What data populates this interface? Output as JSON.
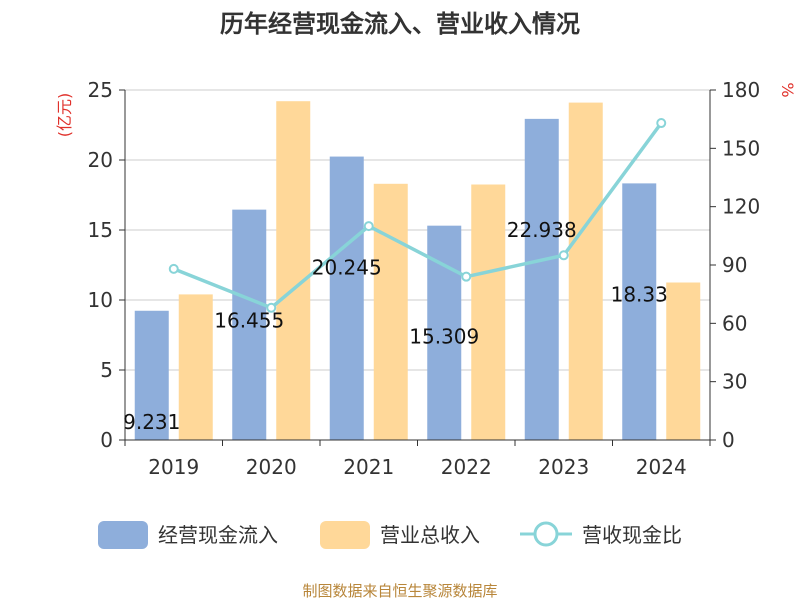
{
  "chart_data": {
    "type": "bar",
    "title": "历年经营现金流入、营业收入情况",
    "categories": [
      "2019",
      "2020",
      "2021",
      "2022",
      "2023",
      "2024"
    ],
    "series": [
      {
        "name": "经营现金流入",
        "kind": "bar",
        "axis": "left",
        "color": "#8eaedb",
        "values": [
          9.231,
          16.455,
          20.245,
          15.309,
          22.938,
          18.33
        ],
        "labels": [
          "9.231",
          "16.455",
          "20.245",
          "15.309",
          "22.938",
          "18.33"
        ]
      },
      {
        "name": "营业总收入",
        "kind": "bar",
        "axis": "left",
        "color": "#ffd899",
        "values": [
          10.4,
          24.2,
          18.3,
          18.25,
          24.1,
          11.25
        ]
      },
      {
        "name": "营收现金比",
        "kind": "line",
        "axis": "right",
        "color": "#88d4d8",
        "values": [
          88,
          68,
          110,
          84,
          95,
          163
        ]
      }
    ],
    "y_left": {
      "unit": "(亿元)",
      "min": 0,
      "max": 25,
      "ticks": [
        0,
        5,
        10,
        15,
        20,
        25
      ]
    },
    "y_right": {
      "unit": "%",
      "min": 0,
      "max": 180,
      "ticks": [
        0,
        30,
        60,
        90,
        120,
        150,
        180
      ]
    },
    "grid": true,
    "legend_position": "bottom"
  },
  "source_note": "制图数据来自恒生聚源数据库"
}
